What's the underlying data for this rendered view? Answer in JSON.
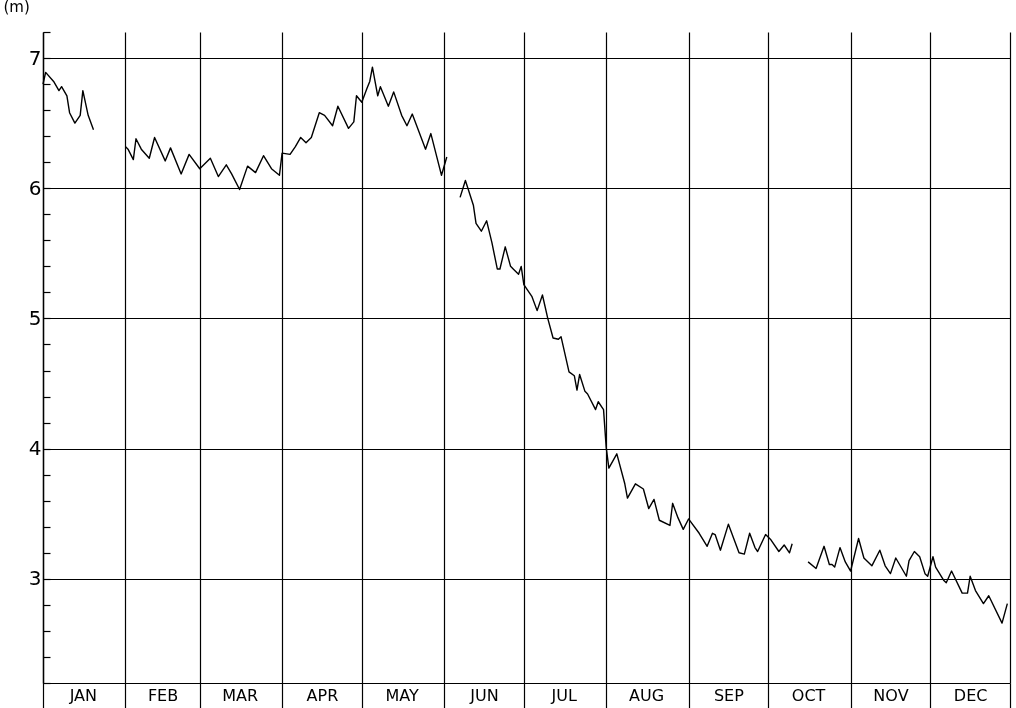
{
  "chart_data": {
    "type": "line",
    "ylabel": "(m)",
    "color": "#000000",
    "grid": true,
    "line_style": "solid",
    "marker": "none",
    "ylim": [
      2.2,
      7.2
    ],
    "yticks": [
      {
        "value": 2.2,
        "label": null
      },
      {
        "value": 2.4,
        "label": null
      },
      {
        "value": 2.6,
        "label": null
      },
      {
        "value": 2.8,
        "label": null
      },
      3,
      {
        "value": 3.2,
        "label": null
      },
      {
        "value": 3.4,
        "label": null
      },
      {
        "value": 3.6,
        "label": null
      },
      {
        "value": 3.8,
        "label": null
      },
      4,
      {
        "value": 4.2,
        "label": null
      },
      {
        "value": 4.4,
        "label": null
      },
      {
        "value": 4.6,
        "label": null
      },
      {
        "value": 4.8,
        "label": null
      },
      5,
      {
        "value": 5.2,
        "label": null
      },
      {
        "value": 5.4,
        "label": null
      },
      {
        "value": 5.6,
        "label": null
      },
      {
        "value": 5.8,
        "label": null
      },
      6,
      {
        "value": 6.2,
        "label": null
      },
      {
        "value": 6.4,
        "label": null
      },
      {
        "value": 6.6,
        "label": null
      },
      {
        "value": 6.8,
        "label": null
      },
      7,
      {
        "value": 7.2,
        "label": null
      }
    ],
    "xlim": [
      "--01-01",
      "--12-31"
    ],
    "xticks": [
      {
        "value": "--01-01",
        "label": null
      },
      {
        "value": "--01-16",
        "label": "JAN"
      },
      {
        "value": "--02-01",
        "label": null
      },
      {
        "value": "--02-15",
        "label": "FEB"
      },
      {
        "value": "--03-01",
        "label": null
      },
      {
        "value": "--03-16",
        "label": "MAR"
      },
      {
        "value": "--04-01",
        "label": null
      },
      {
        "value": "--04-16",
        "label": "APR"
      },
      {
        "value": "--05-01",
        "label": null
      },
      {
        "value": "--05-16",
        "label": "MAY"
      },
      {
        "value": "--06-01",
        "label": null
      },
      {
        "value": "--06-16",
        "label": "JUN"
      },
      {
        "value": "--07-01",
        "label": null
      },
      {
        "value": "--07-16",
        "label": "JUL"
      },
      {
        "value": "--08-01",
        "label": null
      },
      {
        "value": "--08-16",
        "label": "AUG"
      },
      {
        "value": "--09-01",
        "label": null
      },
      {
        "value": "--09-16",
        "label": "SEP"
      },
      {
        "value": "--10-01",
        "label": null
      },
      {
        "value": "--10-16",
        "label": "OCT"
      },
      {
        "value": "--11-01",
        "label": null
      },
      {
        "value": "--11-16",
        "label": "NOV"
      },
      {
        "value": "--12-01",
        "label": null
      },
      {
        "value": "--12-16",
        "label": "DEC"
      },
      {
        "value": "--12-31",
        "label": null
      }
    ],
    "x": [
      "--01-01",
      "--01-02",
      "--01-05",
      "--01-07",
      "--01-08",
      "--01-10",
      "--01-11",
      "--01-13",
      "--01-15",
      "--01-16",
      "--01-18",
      "--01-20",
      "--01-25",
      "--02-01",
      "--02-02",
      "--02-04",
      "--02-05",
      "--02-07",
      "--02-10",
      "--02-12",
      "--02-16",
      "--02-18",
      "--02-22",
      "--02-25",
      "--03-01",
      "--03-05",
      "--03-08",
      "--03-11",
      "--03-13",
      "--03-16",
      "--03-19",
      "--03-22",
      "--03-25",
      "--03-28",
      "--03-31",
      "--04-01",
      "--04-04",
      "--04-06",
      "--04-08",
      "--04-10",
      "--04-12",
      "--04-15",
      "--04-17",
      "--04-20",
      "--04-22",
      "--04-26",
      "--04-28",
      "--04-29",
      "--05-01",
      "--05-03",
      "--05-04",
      "--05-05",
      "--05-07",
      "--05-08",
      "--05-11",
      "--05-13",
      "--05-16",
      "--05-18",
      "--05-20",
      "--05-25",
      "--05-27",
      "--05-30",
      "--05-31",
      "--06-02",
      "--06-04",
      "--06-07",
      "--06-09",
      "--06-12",
      "--06-13",
      "--06-15",
      "--06-17",
      "--06-19",
      "--06-21",
      "--06-22",
      "--06-24",
      "--06-26",
      "--06-27",
      "--06-29",
      "--06-30",
      "--07-01",
      "--07-04",
      "--07-06",
      "--07-08",
      "--07-10",
      "--07-12",
      "--07-14",
      "--07-15",
      "--07-18",
      "--07-20",
      "--07-21",
      "--07-22",
      "--07-24",
      "--07-25",
      "--07-28",
      "--07-29",
      "--07-31",
      "--08-01",
      "--08-02",
      "--08-05",
      "--08-08",
      "--08-09",
      "--08-12",
      "--08-15",
      "--08-17",
      "--08-19",
      "--08-21",
      "--08-25",
      "--08-26",
      "--08-28",
      "--08-30",
      "--09-01",
      "--09-05",
      "--09-08",
      "--09-10",
      "--09-11",
      "--09-13",
      "--09-16",
      "--09-20",
      "--09-22",
      "--09-24",
      "--09-26",
      "--09-27",
      "--09-30",
      "--10-02",
      "--10-05",
      "--10-07",
      "--10-09",
      "--10-10",
      "--10-13",
      "--10-16",
      "--10-19",
      "--10-22",
      "--10-24",
      "--10-25",
      "--10-26",
      "--10-28",
      "--10-30",
      "--11-01",
      "--11-04",
      "--11-06",
      "--11-09",
      "--11-12",
      "--11-14",
      "--11-16",
      "--11-18",
      "--11-22",
      "--11-23",
      "--11-25",
      "--11-27",
      "--11-29",
      "--11-30",
      "--12-02",
      "--12-03",
      "--12-06",
      "--12-07",
      "--12-09",
      "--12-13",
      "--12-15",
      "--12-16",
      "--12-18",
      "--12-21",
      "--12-23",
      "--12-28",
      "--12-30"
    ],
    "values": [
      6.8,
      6.89,
      6.82,
      6.75,
      6.78,
      6.71,
      6.58,
      6.5,
      6.56,
      6.75,
      6.56,
      6.45,
      null,
      6.32,
      6.3,
      6.22,
      6.38,
      6.3,
      6.23,
      6.39,
      6.21,
      6.31,
      6.11,
      6.26,
      6.15,
      6.23,
      6.09,
      6.18,
      6.11,
      5.99,
      6.17,
      6.12,
      6.25,
      6.15,
      6.1,
      6.27,
      6.26,
      6.32,
      6.39,
      6.35,
      6.39,
      6.58,
      6.56,
      6.48,
      6.63,
      6.46,
      6.51,
      6.71,
      6.66,
      6.77,
      6.82,
      6.93,
      6.71,
      6.78,
      6.63,
      6.74,
      6.56,
      6.48,
      6.57,
      6.3,
      6.42,
      6.18,
      6.1,
      6.24,
      null,
      5.93,
      6.06,
      5.87,
      5.73,
      5.67,
      5.75,
      5.58,
      5.38,
      5.38,
      5.55,
      5.4,
      5.38,
      5.34,
      5.4,
      5.26,
      5.17,
      5.06,
      5.18,
      5.0,
      4.85,
      4.84,
      4.86,
      4.59,
      4.56,
      4.45,
      4.57,
      4.44,
      4.42,
      4.3,
      4.36,
      4.3,
      4.01,
      3.85,
      3.96,
      3.73,
      3.62,
      3.73,
      3.69,
      3.54,
      3.61,
      3.45,
      3.41,
      3.58,
      3.47,
      3.38,
      3.46,
      3.35,
      3.25,
      3.35,
      3.34,
      3.22,
      3.42,
      3.2,
      3.19,
      3.35,
      3.24,
      3.21,
      3.34,
      3.3,
      3.21,
      3.26,
      3.2,
      3.27,
      null,
      3.13,
      3.08,
      3.25,
      3.11,
      3.11,
      3.09,
      3.24,
      3.13,
      3.06,
      3.31,
      3.16,
      3.1,
      3.22,
      3.1,
      3.04,
      3.16,
      3.02,
      3.14,
      3.21,
      3.17,
      3.04,
      3.02,
      3.17,
      3.09,
      2.99,
      2.97,
      3.06,
      2.89,
      2.89,
      3.02,
      2.91,
      2.81,
      2.87,
      2.66,
      2.81
    ]
  }
}
